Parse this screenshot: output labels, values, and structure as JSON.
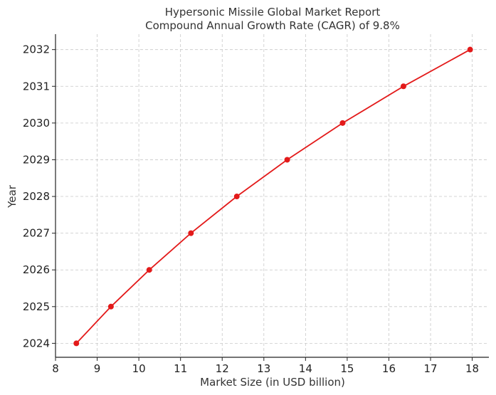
{
  "chart_data": {
    "type": "line",
    "title": "Hypersonic Missile Global Market Report",
    "subtitle": "Compound Annual Growth Rate (CAGR) of 9.8%",
    "xlabel": "Market Size (in USD billion)",
    "ylabel": "Year",
    "xlim": [
      8,
      18.4
    ],
    "ylim": [
      2023.62,
      2032.42
    ],
    "x_ticks": [
      8,
      9,
      10,
      11,
      12,
      13,
      14,
      15,
      16,
      17,
      18
    ],
    "y_ticks": [
      2024,
      2025,
      2026,
      2027,
      2028,
      2029,
      2030,
      2031,
      2032
    ],
    "grid": true,
    "series": [
      {
        "color": "#e31a1a",
        "marker": "circle",
        "points": [
          {
            "x": 8.5,
            "y": 2024
          },
          {
            "x": 9.33,
            "y": 2025
          },
          {
            "x": 10.25,
            "y": 2026
          },
          {
            "x": 11.25,
            "y": 2027
          },
          {
            "x": 12.35,
            "y": 2028
          },
          {
            "x": 13.56,
            "y": 2029
          },
          {
            "x": 14.89,
            "y": 2030
          },
          {
            "x": 16.35,
            "y": 2031
          },
          {
            "x": 17.95,
            "y": 2032
          }
        ]
      }
    ]
  }
}
